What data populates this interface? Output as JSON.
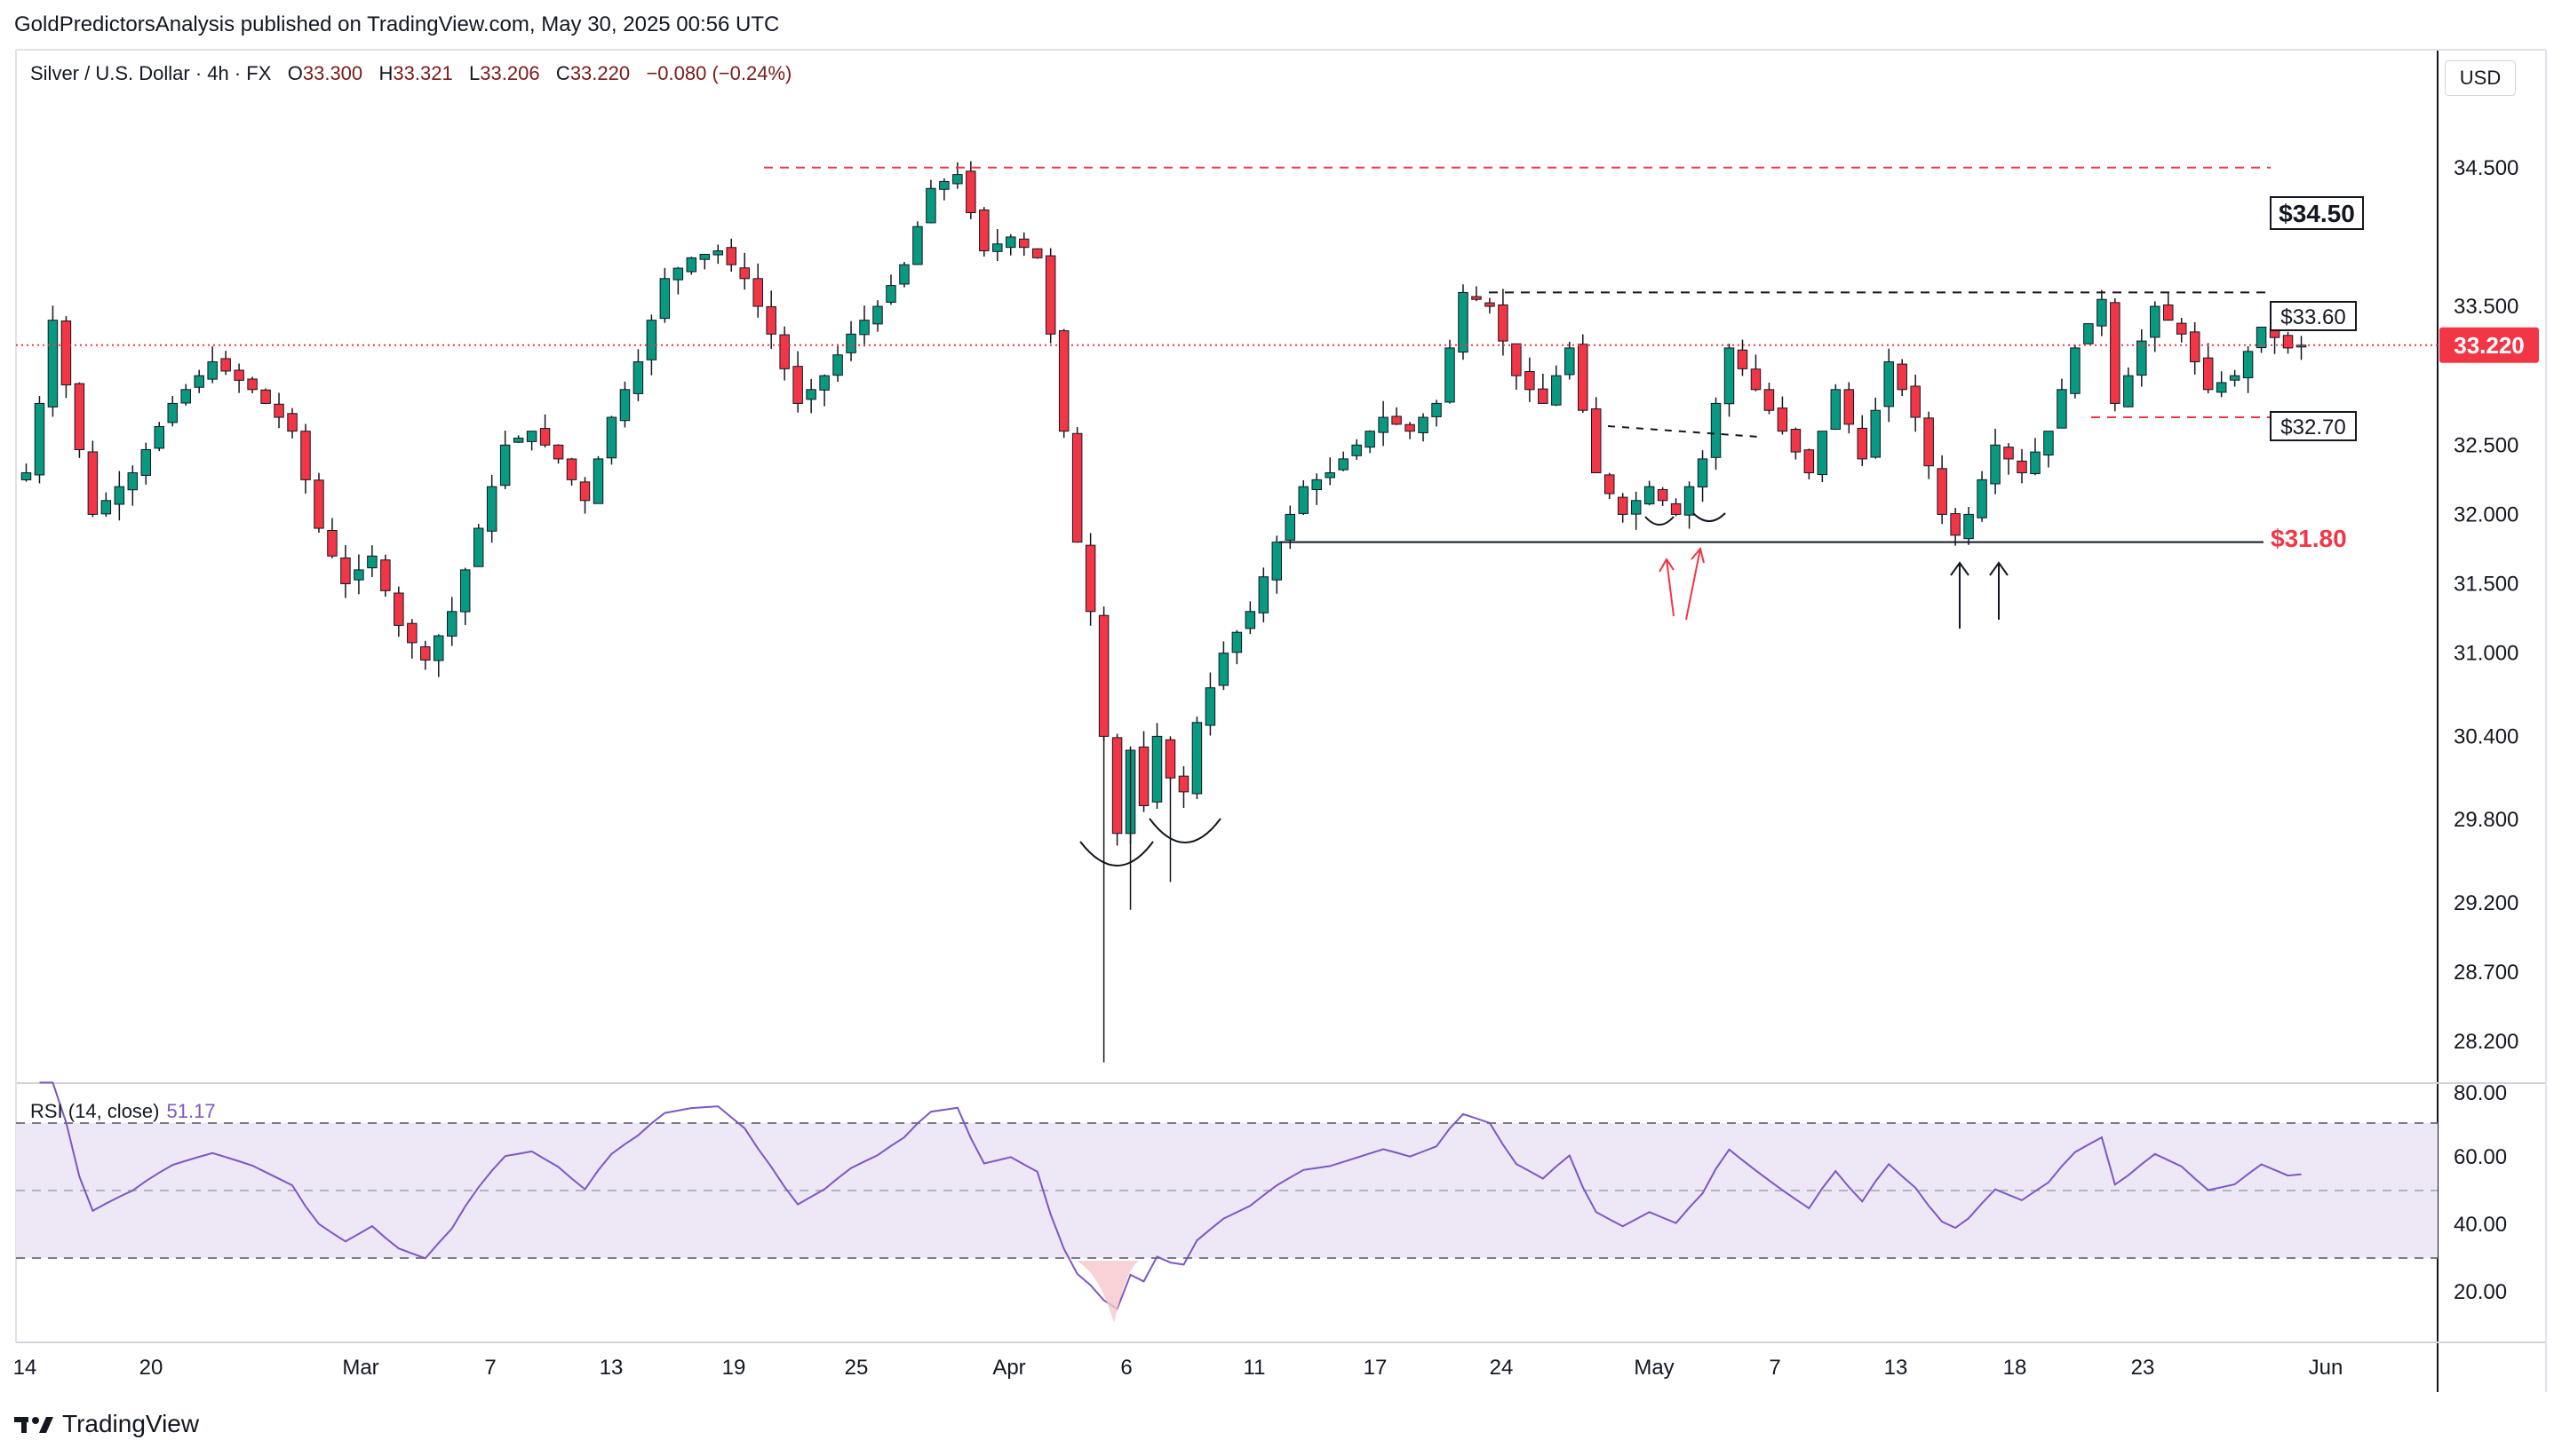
{
  "header": {
    "publisher": "GoldPredictorsAnalysis published on TradingView.com, May 30, 2025 00:56 UTC",
    "symbol": "Silver / U.S. Dollar · 4h · FX",
    "open_label": "O",
    "open": "33.300",
    "high_label": "H",
    "high": "33.321",
    "low_label": "L",
    "low": "33.206",
    "close_label": "C",
    "close": "33.220",
    "change": "−0.080 (−0.24%)",
    "currency": "USD"
  },
  "rsi_panel": {
    "label": "RSI (14, close)",
    "value": "51.17",
    "ticks": [
      "80.00",
      "60.00",
      "40.00",
      "20.00"
    ]
  },
  "footer": {
    "brand": "TradingView"
  },
  "colors": {
    "up": "#089981",
    "down": "#f23645",
    "rsi_line": "#7e57c2",
    "rsi_band": "#ede7f6",
    "resistance": "#f23645",
    "support": "#131722"
  },
  "chart_data": {
    "type": "candlestick",
    "instrument": "Silver / U.S. Dollar",
    "timeframe": "4h",
    "ylim": [
      27.9,
      35.35
    ],
    "y_ticks": [
      "34.500",
      "33.500",
      "32.500",
      "32.000",
      "31.500",
      "31.000",
      "30.400",
      "29.800",
      "29.200",
      "28.700",
      "28.200"
    ],
    "x_ticks": [
      "14",
      "20",
      "Mar",
      "7",
      "13",
      "19",
      "25",
      "Apr",
      "6",
      "11",
      "17",
      "24",
      "May",
      "7",
      "13",
      "18",
      "23",
      "Jun"
    ],
    "last_price": "33.220",
    "close_path": [
      [
        0,
        32.3
      ],
      [
        1,
        32.8
      ],
      [
        2,
        33.4
      ],
      [
        5,
        32.0
      ],
      [
        8,
        32.3
      ],
      [
        11,
        32.8
      ],
      [
        14,
        33.1
      ],
      [
        17,
        32.9
      ],
      [
        20,
        32.6
      ],
      [
        22,
        31.9
      ],
      [
        24,
        31.5
      ],
      [
        26,
        31.7
      ],
      [
        28,
        31.2
      ],
      [
        30,
        30.95
      ],
      [
        32,
        31.3
      ],
      [
        34,
        31.9
      ],
      [
        36,
        32.5
      ],
      [
        38,
        32.6
      ],
      [
        40,
        32.4
      ],
      [
        42,
        32.1
      ],
      [
        44,
        32.7
      ],
      [
        46,
        33.1
      ],
      [
        48,
        33.7
      ],
      [
        50,
        33.85
      ],
      [
        52,
        33.9
      ],
      [
        54,
        33.7
      ],
      [
        56,
        33.3
      ],
      [
        58,
        32.8
      ],
      [
        60,
        33.0
      ],
      [
        62,
        33.3
      ],
      [
        64,
        33.5
      ],
      [
        66,
        33.8
      ],
      [
        68,
        34.35
      ],
      [
        70,
        34.45
      ],
      [
        72,
        33.9
      ],
      [
        74,
        34.0
      ],
      [
        76,
        33.85
      ],
      [
        77,
        33.3
      ],
      [
        78,
        32.6
      ],
      [
        79,
        31.8
      ],
      [
        80,
        31.3
      ],
      [
        81,
        30.4
      ],
      [
        82,
        29.7
      ],
      [
        83,
        30.3
      ],
      [
        84,
        29.9
      ],
      [
        85,
        30.4
      ],
      [
        86,
        30.1
      ],
      [
        87,
        30.0
      ],
      [
        88,
        30.5
      ],
      [
        90,
        31.0
      ],
      [
        92,
        31.3
      ],
      [
        94,
        31.8
      ],
      [
        96,
        32.2
      ],
      [
        98,
        32.3
      ],
      [
        100,
        32.5
      ],
      [
        102,
        32.7
      ],
      [
        104,
        32.6
      ],
      [
        106,
        32.8
      ],
      [
        108,
        33.6
      ],
      [
        110,
        33.5
      ],
      [
        112,
        33.0
      ],
      [
        114,
        32.8
      ],
      [
        116,
        33.2
      ],
      [
        118,
        32.3
      ],
      [
        120,
        32.0
      ],
      [
        122,
        32.2
      ],
      [
        124,
        32.0
      ],
      [
        126,
        32.4
      ],
      [
        128,
        33.2
      ],
      [
        130,
        32.9
      ],
      [
        132,
        32.6
      ],
      [
        134,
        32.3
      ],
      [
        136,
        32.9
      ],
      [
        138,
        32.4
      ],
      [
        140,
        33.1
      ],
      [
        142,
        32.7
      ],
      [
        144,
        32.0
      ],
      [
        145,
        31.85
      ],
      [
        146,
        32.0
      ],
      [
        148,
        32.5
      ],
      [
        150,
        32.3
      ],
      [
        152,
        32.6
      ],
      [
        154,
        33.2
      ],
      [
        156,
        33.55
      ],
      [
        157,
        32.8
      ],
      [
        158,
        33.0
      ],
      [
        160,
        33.5
      ],
      [
        162,
        33.3
      ],
      [
        164,
        32.9
      ],
      [
        166,
        33.0
      ],
      [
        168,
        33.35
      ],
      [
        170,
        33.2
      ],
      [
        171,
        33.22
      ]
    ],
    "annotations": [
      {
        "text": "$34.50",
        "price": 34.5,
        "kind": "resistance"
      },
      {
        "text": "$33.60",
        "price": 33.6,
        "kind": "range-top"
      },
      {
        "text": "$32.70",
        "price": 32.7,
        "kind": "range-bottom"
      },
      {
        "text": "$31.80",
        "price": 31.8,
        "kind": "support"
      }
    ]
  }
}
